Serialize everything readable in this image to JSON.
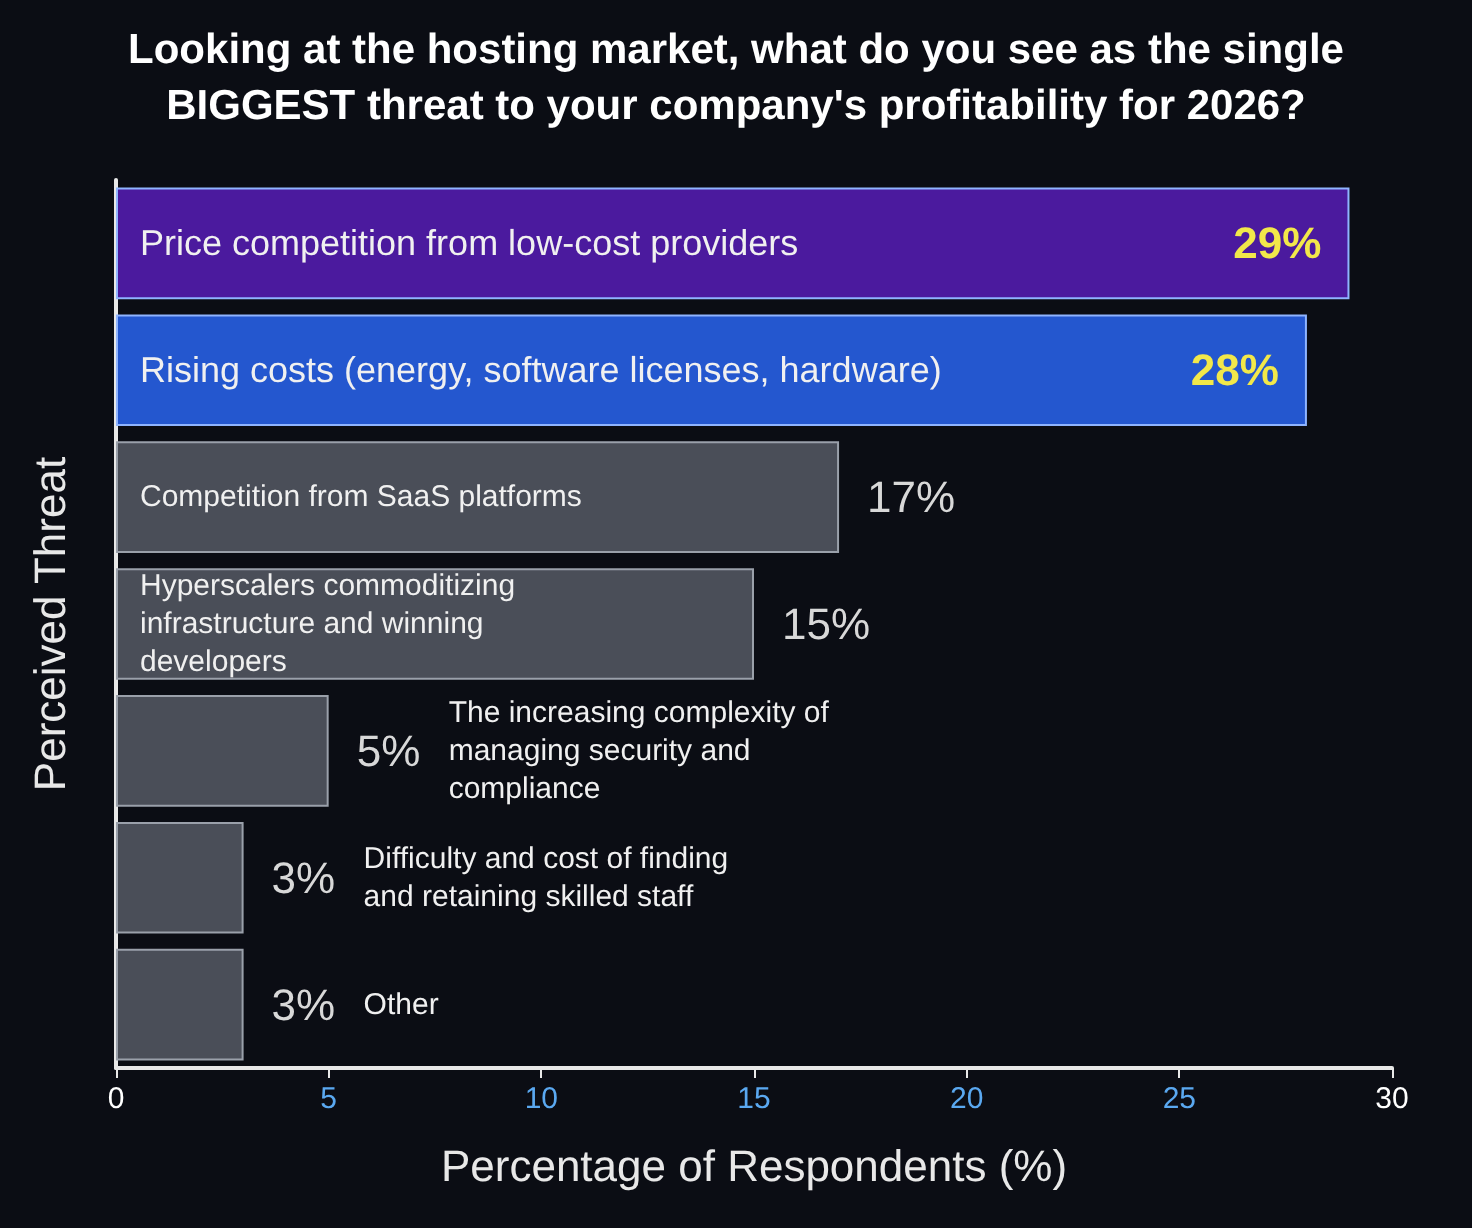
{
  "chart_data": {
    "type": "bar",
    "orientation": "horizontal",
    "title": "Looking at the hosting market, what do you see as the single\nBIGGEST threat to your company's profitability for 2026?",
    "xlabel": "Percentage of Respondents (%)",
    "ylabel": "Perceived Threat",
    "categories": [
      "Price competition from low-cost providers",
      "Rising costs (energy, software licenses, hardware)",
      "Competition from SaaS platforms",
      "Hyperscalers commoditizing infrastructure and winning developers",
      "The increasing complexity of managing security and compliance",
      "Difficulty and cost of finding and retaining skilled staff",
      "Other"
    ],
    "values": [
      29,
      28,
      17,
      15,
      5,
      3,
      3
    ],
    "value_labels": [
      "29%",
      "28%",
      "17%",
      "15%",
      "5%",
      "3%",
      "3%"
    ],
    "colors": [
      "#4b1a9e",
      "#2457cf",
      "#4a4e58",
      "#4a4e58",
      "#4a4e58",
      "#4a4e58",
      "#4a4e58"
    ],
    "xlim": [
      0,
      30
    ],
    "xticks": [
      0,
      5,
      10,
      15,
      20,
      25,
      30
    ],
    "grid": false
  }
}
